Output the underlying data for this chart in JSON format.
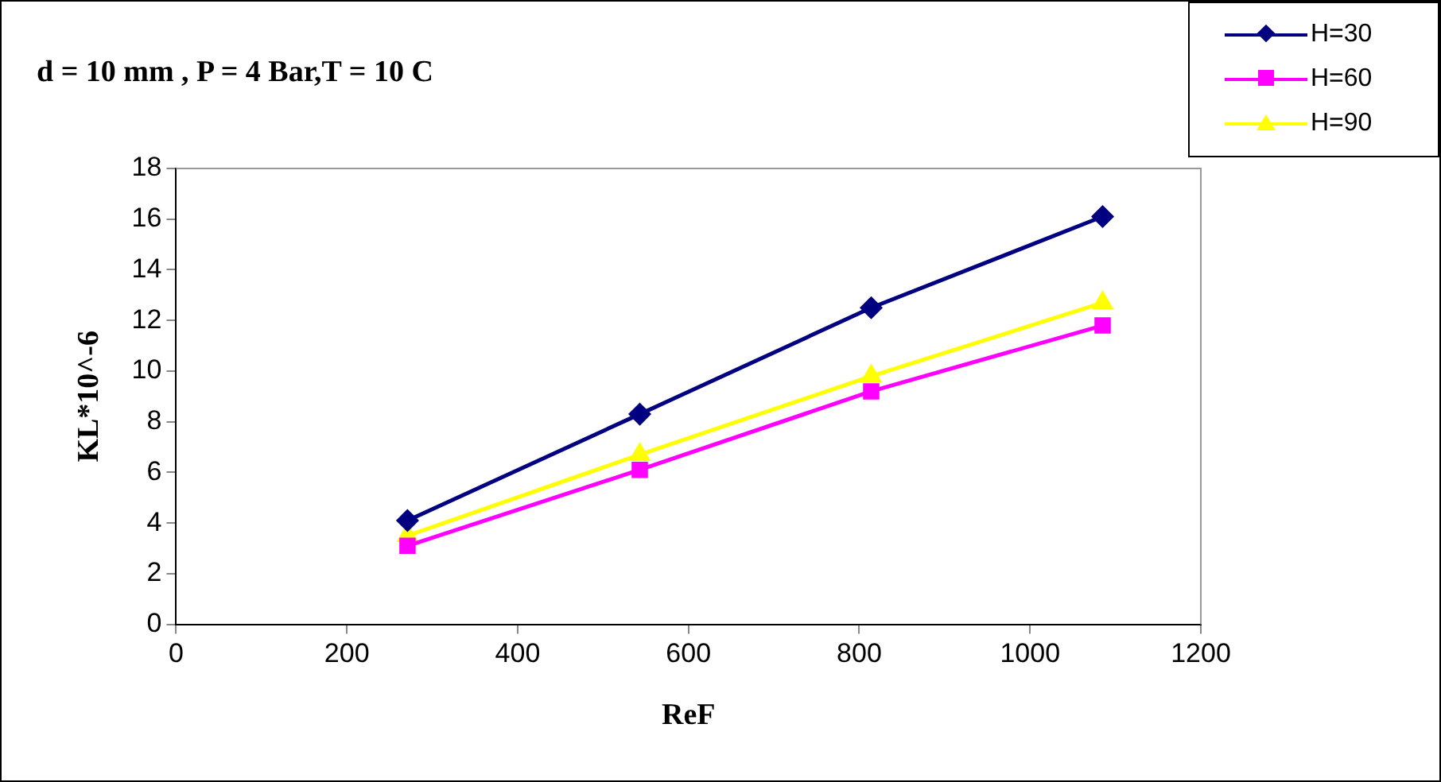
{
  "chart_data": {
    "type": "line",
    "title": "d = 10 mm , P = 4 Bar,T = 10 C",
    "xlabel": "ReF",
    "ylabel": "KL*10^-6",
    "x": [
      271,
      543,
      814,
      1085
    ],
    "series": [
      {
        "name": "H=30",
        "color": "#000080",
        "marker": "diamond",
        "values": [
          4.1,
          8.3,
          12.5,
          16.1
        ]
      },
      {
        "name": "H=60",
        "color": "#ff00ff",
        "marker": "square",
        "values": [
          3.1,
          6.1,
          9.2,
          11.8
        ]
      },
      {
        "name": "H=90",
        "color": "#ffff00",
        "marker": "triangle",
        "values": [
          3.5,
          6.7,
          9.8,
          12.7
        ]
      }
    ],
    "xlim": [
      0,
      1200
    ],
    "xticks": [
      0,
      200,
      400,
      600,
      800,
      1000,
      1200
    ],
    "ylim": [
      0,
      18
    ],
    "yticks": [
      0,
      2,
      4,
      6,
      8,
      10,
      12,
      14,
      16,
      18
    ],
    "grid": false,
    "legend": "top right",
    "line_style": "solid"
  }
}
